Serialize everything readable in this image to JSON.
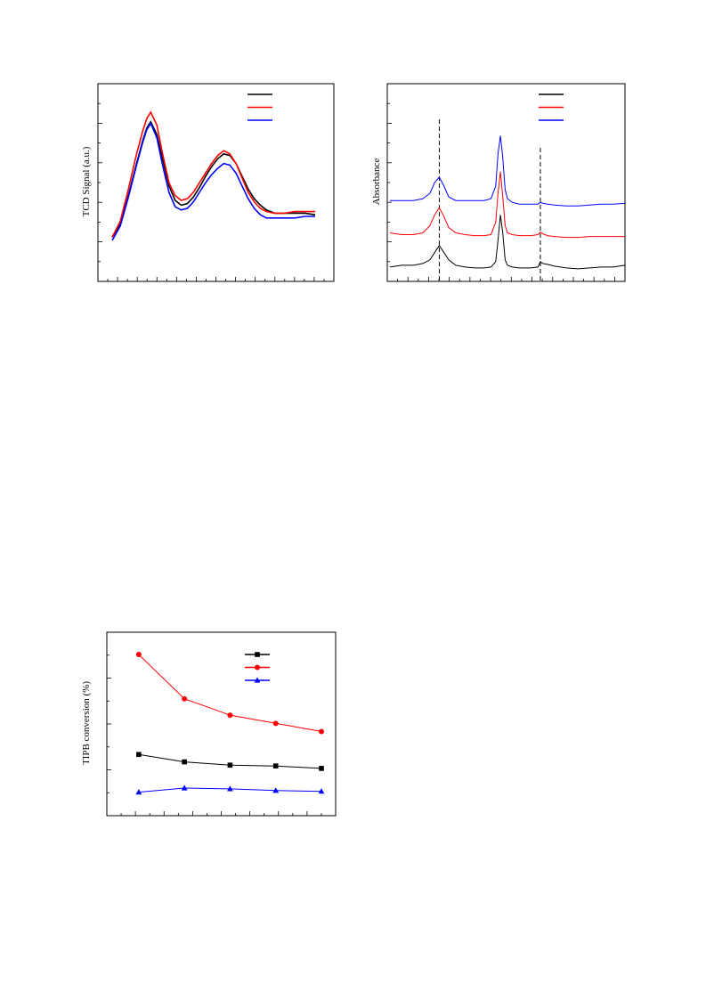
{
  "chart_data": [
    {
      "id": "tcd",
      "type": "line",
      "title": "",
      "xlabel": "",
      "ylabel": "TCD Signal (a.u.)",
      "xlim": [
        0,
        100
      ],
      "ylim": [
        0,
        100
      ],
      "grid": false,
      "legend": {
        "position": "top-right",
        "entries": [
          "",
          "",
          ""
        ]
      },
      "series": [
        {
          "color": "#000000",
          "x": [
            0,
            4,
            8,
            12,
            15,
            17,
            19,
            22,
            25,
            28,
            31,
            34,
            37,
            40,
            43,
            46,
            49,
            52,
            55,
            58,
            61,
            64,
            67,
            70,
            73,
            76,
            80,
            85,
            90,
            95,
            100
          ],
          "y": [
            12,
            20,
            38,
            58,
            72,
            80,
            84,
            76,
            60,
            44,
            35,
            32,
            33,
            37,
            43,
            50,
            56,
            61,
            64,
            63,
            58,
            50,
            42,
            36,
            32,
            29,
            27,
            27,
            27,
            27,
            26
          ]
        },
        {
          "color": "#ff0000",
          "x": [
            0,
            4,
            8,
            12,
            15,
            17,
            19,
            22,
            25,
            28,
            31,
            34,
            37,
            40,
            43,
            46,
            49,
            52,
            55,
            58,
            61,
            64,
            67,
            70,
            73,
            76,
            80,
            85,
            90,
            95,
            100
          ],
          "y": [
            12,
            22,
            42,
            64,
            78,
            86,
            90,
            82,
            63,
            46,
            38,
            35,
            36,
            40,
            46,
            52,
            58,
            63,
            66,
            64,
            58,
            49,
            40,
            34,
            30,
            28,
            27,
            27,
            28,
            28,
            28
          ]
        },
        {
          "color": "#0000ff",
          "x": [
            0,
            4,
            8,
            12,
            15,
            17,
            19,
            22,
            25,
            28,
            31,
            34,
            37,
            40,
            43,
            46,
            49,
            52,
            55,
            58,
            61,
            64,
            67,
            70,
            73,
            76,
            80,
            85,
            90,
            95,
            100
          ],
          "y": [
            10,
            19,
            37,
            57,
            71,
            79,
            83,
            74,
            56,
            40,
            31,
            29,
            30,
            34,
            40,
            46,
            51,
            55,
            58,
            57,
            52,
            44,
            36,
            30,
            26,
            24,
            24,
            24,
            24,
            25,
            25
          ]
        }
      ]
    },
    {
      "id": "ir",
      "type": "line",
      "title": "",
      "xlabel": "",
      "ylabel": "Absorbance",
      "xlim": [
        0,
        100
      ],
      "ylim": [
        0,
        100
      ],
      "grid": false,
      "reference_lines_x": [
        21,
        64
      ],
      "legend": {
        "position": "top-right",
        "entries": [
          "",
          "",
          ""
        ]
      },
      "series": [
        {
          "color": "#000000",
          "x": [
            0,
            5,
            10,
            14,
            17,
            19,
            21,
            23,
            25,
            28,
            32,
            36,
            40,
            43,
            45,
            46,
            47,
            48,
            49,
            50,
            52,
            55,
            60,
            63,
            64,
            65,
            67,
            70,
            75,
            80,
            85,
            90,
            95,
            100
          ],
          "y": [
            5,
            6,
            6,
            7,
            9,
            13,
            17,
            13,
            9,
            6,
            5,
            4.5,
            4.5,
            5,
            8,
            20,
            34,
            24,
            9,
            6,
            5,
            4.5,
            4.5,
            5,
            8,
            7,
            6.5,
            5.5,
            4.5,
            4,
            4.5,
            5,
            5,
            6
          ]
        },
        {
          "color": "#ff0000",
          "x": [
            0,
            5,
            10,
            14,
            17,
            19,
            21,
            23,
            25,
            28,
            32,
            36,
            40,
            43,
            45,
            46,
            47,
            48,
            49,
            50,
            52,
            55,
            60,
            63,
            64,
            65,
            67,
            70,
            75,
            80,
            85,
            90,
            95,
            100
          ],
          "y": [
            24,
            23,
            23,
            24,
            28,
            34,
            38,
            33,
            27,
            24,
            23,
            22.5,
            22.5,
            23,
            30,
            46,
            58,
            44,
            28,
            24,
            23,
            22.5,
            22.5,
            23,
            24.5,
            23.5,
            22.5,
            22,
            21.5,
            21.5,
            22,
            22,
            22,
            22
          ]
        },
        {
          "color": "#0000ff",
          "x": [
            0,
            5,
            10,
            14,
            17,
            19,
            21,
            23,
            25,
            28,
            32,
            36,
            40,
            43,
            45,
            46,
            47,
            48,
            49,
            50,
            52,
            55,
            60,
            63,
            64,
            65,
            67,
            70,
            75,
            80,
            85,
            90,
            95,
            100
          ],
          "y": [
            42,
            42,
            42,
            43,
            46,
            52,
            55,
            50,
            44,
            42,
            42,
            42,
            42,
            43,
            50,
            68,
            78,
            66,
            48,
            43,
            41,
            40,
            40,
            40,
            41,
            40.5,
            40,
            39.5,
            39,
            39,
            39.5,
            40,
            40,
            40.5
          ]
        }
      ]
    },
    {
      "id": "tipb",
      "type": "line",
      "title": "",
      "xlabel": "",
      "ylabel": "TIPB conversion (%)",
      "xlim": [
        0,
        100
      ],
      "ylim": [
        0,
        100
      ],
      "grid": false,
      "legend": {
        "position": "top-right",
        "entries": [
          "",
          "",
          ""
        ]
      },
      "series": [
        {
          "color": "#000000",
          "marker": "square",
          "x": [
            8,
            31,
            54,
            77,
            100
          ],
          "y": [
            33,
            28.5,
            26.5,
            26,
            24.5
          ]
        },
        {
          "color": "#ff0000",
          "marker": "circle",
          "x": [
            8,
            31,
            54,
            77,
            100
          ],
          "y": [
            94,
            67,
            57,
            52,
            47
          ]
        },
        {
          "color": "#0000ff",
          "marker": "triangle",
          "x": [
            8,
            31,
            54,
            77,
            100
          ],
          "y": [
            10,
            12.5,
            12,
            11,
            10.5
          ]
        }
      ]
    }
  ]
}
